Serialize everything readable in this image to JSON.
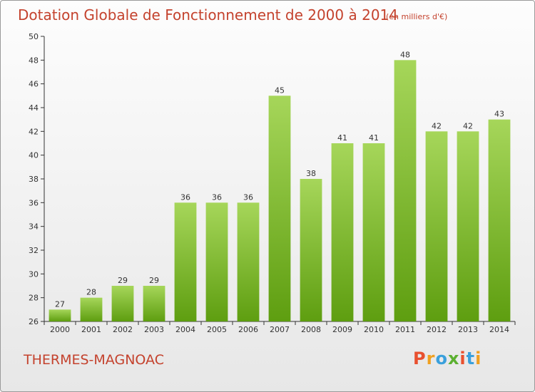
{
  "header": {
    "title": "Dotation Globale de Fonctionnement de 2000 à 2014",
    "subtitle": "(en milliers d'€)"
  },
  "footer": {
    "commune": "THERMES-MAGNOAC",
    "logo_text": "Proxiti",
    "logo_colors": [
      "#e8502f",
      "#f0a020",
      "#3aa0dc",
      "#5bb030",
      "#e8502f",
      "#3aa0dc",
      "#f0a020"
    ]
  },
  "colors": {
    "bar_top": "#a6d65a",
    "bar_bottom": "#5e9e10",
    "text_accent": "#c4422d",
    "axis": "#333333",
    "grid": "#cccccc"
  },
  "chart_data": {
    "type": "bar",
    "title": "Dotation Globale de Fonctionnement de 2000 à 2014",
    "subtitle": "(en milliers d'€)",
    "xlabel": "",
    "ylabel": "",
    "categories": [
      "2000",
      "2001",
      "2002",
      "2003",
      "2004",
      "2005",
      "2006",
      "2007",
      "2008",
      "2009",
      "2010",
      "2011",
      "2012",
      "2013",
      "2014"
    ],
    "values": [
      27,
      28,
      29,
      29,
      36,
      36,
      36,
      45,
      38,
      41,
      41,
      48,
      42,
      42,
      43
    ],
    "ylim": [
      26,
      50
    ],
    "yticks": [
      26,
      28,
      30,
      32,
      34,
      36,
      38,
      40,
      42,
      44,
      46,
      48,
      50
    ],
    "grid": false,
    "legend": "none"
  }
}
